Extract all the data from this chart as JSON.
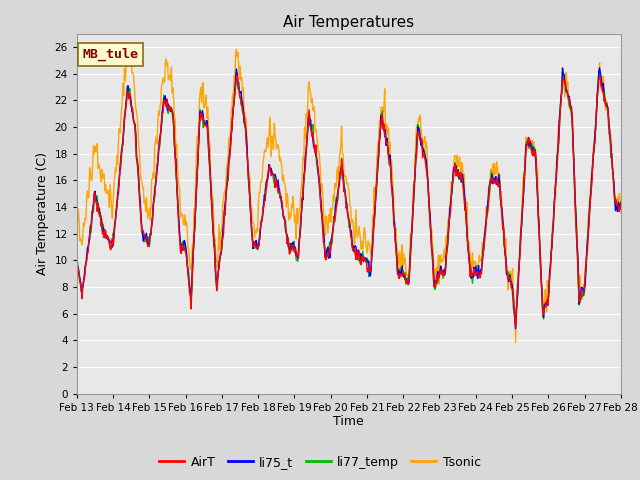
{
  "title": "Air Temperatures",
  "ylabel": "Air Temperature (C)",
  "xlabel": "Time",
  "annotation": "MB_tule",
  "annotation_color": "#8B0000",
  "annotation_bg": "#FFFACD",
  "annotation_border": "#8B6914",
  "ylim": [
    0,
    27
  ],
  "yticks": [
    0,
    2,
    4,
    6,
    8,
    10,
    12,
    14,
    16,
    18,
    20,
    22,
    24,
    26
  ],
  "x_labels": [
    "Feb 13",
    "Feb 14",
    "Feb 15",
    "Feb 16",
    "Feb 17",
    "Feb 18",
    "Feb 19",
    "Feb 20",
    "Feb 21",
    "Feb 22",
    "Feb 23",
    "Feb 24",
    "Feb 25",
    "Feb 26",
    "Feb 27",
    "Feb 28"
  ],
  "series": {
    "AirT": {
      "color": "#FF0000",
      "lw": 1.0
    },
    "li75_t": {
      "color": "#0000FF",
      "lw": 1.0
    },
    "li77_temp": {
      "color": "#00BB00",
      "lw": 1.0
    },
    "Tsonic": {
      "color": "#FFA500",
      "lw": 1.0
    }
  },
  "bg_color": "#D8D8D8",
  "plot_bg": "#E8E8E8",
  "grid_color": "#FFFFFF",
  "title_fontsize": 11,
  "label_fontsize": 9,
  "tick_fontsize": 7.5,
  "legend_fontsize": 9
}
